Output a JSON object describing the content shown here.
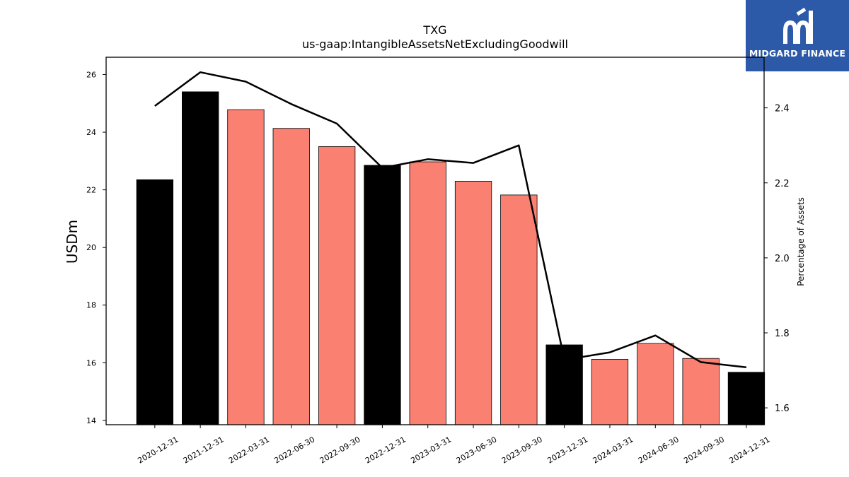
{
  "brand": {
    "name": "MIDGARD FINANCE",
    "logo_icon": "midgard-m-logo-icon",
    "background": "#2d5aa8"
  },
  "chart_data": {
    "type": "bar",
    "title": "TXG",
    "subtitle": "us-gaap:IntangibleAssetsNetExcludingGoodwill",
    "ylabel": "USDm",
    "y2label": "Percentage of Assets",
    "ylim": [
      13.85,
      26.6
    ],
    "y2lim": [
      1.555,
      2.535
    ],
    "yticks": [
      "14",
      "16",
      "18",
      "20",
      "22",
      "24",
      "26"
    ],
    "y2ticks": [
      "1.6",
      "1.8",
      "2.0",
      "2.2",
      "2.4"
    ],
    "categories": [
      "2020-12-31",
      "2021-12-31",
      "2022-03-31",
      "2022-06-30",
      "2022-09-30",
      "2022-12-31",
      "2023-03-31",
      "2023-06-30",
      "2023-09-30",
      "2023-12-31",
      "2024-03-31",
      "2024-06-30",
      "2024-09-30",
      "2024-12-31"
    ],
    "values": [
      22.35,
      25.4,
      24.78,
      24.13,
      23.5,
      22.85,
      22.97,
      22.3,
      21.82,
      16.62,
      16.12,
      16.67,
      16.15,
      15.67
    ],
    "annual": [
      true,
      true,
      false,
      false,
      false,
      true,
      false,
      false,
      false,
      true,
      false,
      false,
      false,
      true
    ],
    "percentage": [
      2.405,
      2.495,
      2.47,
      2.41,
      2.358,
      2.24,
      2.263,
      2.253,
      2.3,
      1.728,
      1.748,
      1.793,
      1.722,
      1.708
    ],
    "colors": {
      "annual": "#000000",
      "quarterly": "#fa8072",
      "line": "#000000"
    },
    "grid": false,
    "legend": "none"
  }
}
